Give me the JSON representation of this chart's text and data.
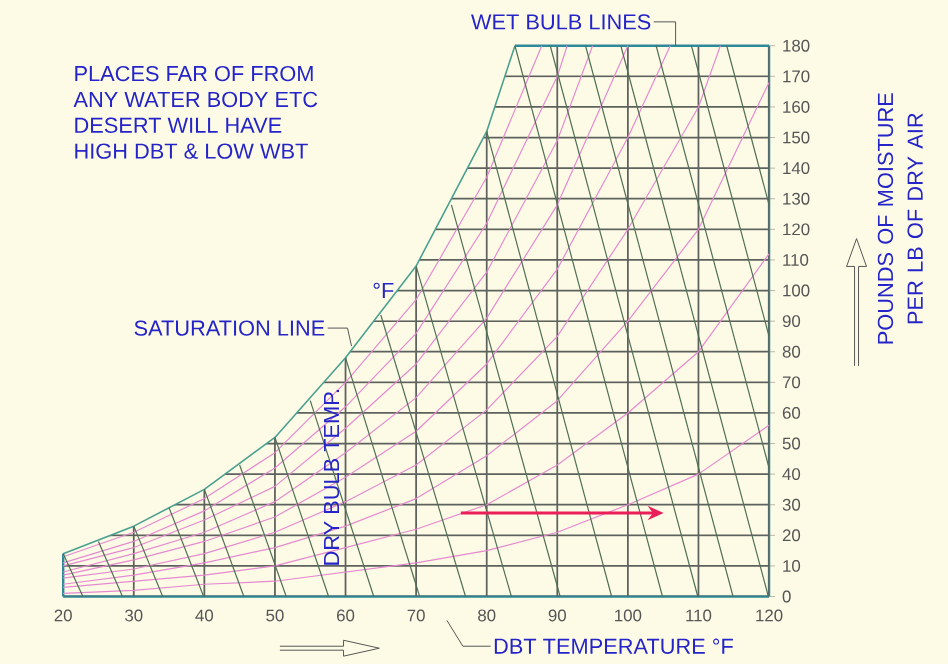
{
  "chart_data": {
    "type": "line",
    "xlabel": "DBT TEMPERATURE °F",
    "ylabel": "POUNDS OF MOISTURE PER LB OF DRY AIR",
    "annotations": [
      "PLACES FAR OF FROM",
      "ANY WATER BODY ETC",
      "DESERT WILL HAVE",
      "HIGH DBT & LOW WBT",
      "WET BULB LINES",
      "SATURATION LINE",
      "°F",
      "DRY BULB TEMP."
    ],
    "xlim": [
      20,
      120
    ],
    "ylim": [
      0,
      180
    ],
    "xticks": [
      20,
      30,
      40,
      50,
      60,
      70,
      80,
      90,
      100,
      110,
      120
    ],
    "yticks": [
      0,
      10,
      20,
      30,
      40,
      50,
      60,
      70,
      80,
      90,
      100,
      110,
      120,
      130,
      140,
      150,
      160,
      170,
      180
    ],
    "tick_labels": "xy",
    "grid": true,
    "series": [
      {
        "color": "#4aa090",
        "x": [
          20,
          30,
          40,
          50,
          60,
          70,
          80,
          84
        ],
        "values": [
          14,
          23,
          35,
          52,
          78,
          108,
          152,
          180
        ]
      },
      {
        "color": "#e58ad0",
        "x": [
          20,
          30,
          40,
          50,
          60,
          70,
          80,
          90,
          100,
          110,
          120
        ],
        "values": [
          1,
          2,
          4,
          5,
          8,
          11,
          15,
          21,
          30,
          40,
          56
        ]
      },
      {
        "color": "#e58ad0",
        "x": [
          20,
          30,
          40,
          50,
          60,
          70,
          80,
          90,
          100,
          110,
          120
        ],
        "values": [
          3,
          5,
          7,
          10,
          16,
          22,
          30,
          43,
          60,
          80,
          112
        ]
      },
      {
        "color": "#e58ad0",
        "x": [
          20,
          30,
          40,
          50,
          60,
          70,
          80,
          90,
          100,
          110,
          120
        ],
        "values": [
          4,
          7,
          11,
          16,
          23,
          32,
          46,
          64,
          90,
          120,
          168
        ]
      },
      {
        "color": "#e58ad0",
        "x": [
          20,
          30,
          40,
          50,
          60,
          70,
          80,
          90,
          100,
          110,
          113.1
        ],
        "values": [
          6,
          9,
          14,
          21,
          31,
          43,
          61,
          85,
          120,
          160,
          180
        ]
      },
      {
        "color": "#e58ad0",
        "x": [
          20,
          30,
          40,
          50,
          60,
          70,
          80,
          90,
          100,
          106
        ],
        "values": [
          7,
          12,
          18,
          26,
          39,
          54,
          76,
          107,
          150,
          180
        ]
      },
      {
        "color": "#e58ad0",
        "x": [
          20,
          30,
          40,
          50,
          60,
          70,
          80,
          90,
          100
        ],
        "values": [
          8,
          14,
          21,
          31,
          47,
          65,
          91,
          128,
          180
        ]
      },
      {
        "color": "#e58ad0",
        "x": [
          20,
          30,
          40,
          50,
          60,
          70,
          80,
          90,
          95
        ],
        "values": [
          10,
          16,
          25,
          36,
          55,
          76,
          106,
          149,
          180
        ]
      },
      {
        "color": "#e58ad0",
        "x": [
          20,
          30,
          40,
          50,
          60,
          70,
          80,
          90,
          91.4
        ],
        "values": [
          11,
          18,
          28,
          42,
          62,
          86,
          122,
          170,
          180
        ]
      },
      {
        "color": "#e58ad0",
        "x": [
          20,
          30,
          40,
          50,
          60,
          70,
          80,
          87.8
        ],
        "values": [
          13,
          21,
          32,
          47,
          70,
          97,
          137,
          180
        ]
      },
      {
        "color": "#4f6f55",
        "x": [
          20,
          22.8
        ],
        "values": [
          14,
          0
        ]
      },
      {
        "color": "#4f6f55",
        "x": [
          25,
          28.4
        ],
        "values": [
          18,
          0
        ]
      },
      {
        "color": "#4f6f55",
        "x": [
          30,
          34.1
        ],
        "values": [
          23,
          0
        ]
      },
      {
        "color": "#4f6f55",
        "x": [
          35,
          39.9
        ],
        "values": [
          29,
          0
        ]
      },
      {
        "color": "#4f6f55",
        "x": [
          40,
          45.6
        ],
        "values": [
          35,
          0
        ]
      },
      {
        "color": "#4f6f55",
        "x": [
          45,
          51.6
        ],
        "values": [
          43,
          0
        ]
      },
      {
        "color": "#4f6f55",
        "x": [
          50,
          57.6
        ],
        "values": [
          52,
          0
        ]
      },
      {
        "color": "#4f6f55",
        "x": [
          55,
          64
        ],
        "values": [
          64,
          0
        ]
      },
      {
        "color": "#4f6f55",
        "x": [
          60,
          70.5
        ],
        "values": [
          78,
          0
        ]
      },
      {
        "color": "#4f6f55",
        "x": [
          65,
          77
        ],
        "values": [
          92,
          0
        ]
      },
      {
        "color": "#4f6f55",
        "x": [
          70,
          83.5
        ],
        "values": [
          108,
          0
        ]
      },
      {
        "color": "#4f6f55",
        "x": [
          75,
          90.4
        ],
        "values": [
          128,
          0
        ]
      },
      {
        "color": "#4f6f55",
        "x": [
          80,
          97.7
        ],
        "values": [
          152,
          0
        ]
      },
      {
        "color": "#4f6f55",
        "x": [
          84,
          104.9
        ],
        "values": [
          180,
          0
        ]
      },
      {
        "color": "#4f6f55",
        "x": [
          89,
          109.9
        ],
        "values": [
          180,
          0
        ]
      },
      {
        "color": "#4f6f55",
        "x": [
          94,
          114.9
        ],
        "values": [
          180,
          0
        ]
      },
      {
        "color": "#4f6f55",
        "x": [
          99,
          119.9
        ],
        "values": [
          180,
          0
        ]
      },
      {
        "color": "#4f6f55",
        "x": [
          104,
          120
        ],
        "values": [
          180,
          42
        ]
      },
      {
        "color": "#4f6f55",
        "x": [
          109,
          120
        ],
        "values": [
          180,
          85
        ]
      },
      {
        "color": "#4f6f55",
        "x": [
          114,
          120
        ],
        "values": [
          180,
          128
        ]
      }
    ]
  }
}
